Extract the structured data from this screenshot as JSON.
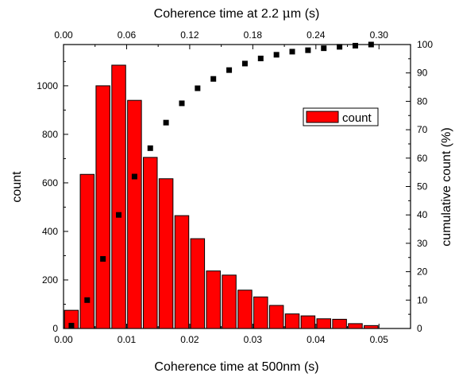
{
  "chart_data": {
    "type": "bar",
    "xlabel": "Coherence time at 500nm (s)",
    "x2label_prefix": "Coherence time at 2.2 ",
    "x2label_mu": "μ",
    "x2label_suffix": "m (s)",
    "ylabel": "count",
    "y2label": "cumulative count (%)",
    "xlim": [
      0,
      0.055
    ],
    "ylim": [
      0,
      1170
    ],
    "y2lim": [
      0,
      100
    ],
    "x2lim": [
      0,
      0.33
    ],
    "xticks": [
      "0.00",
      "0.01",
      "0.02",
      "0.03",
      "0.04",
      "0.05"
    ],
    "xtick_values": [
      0,
      0.01,
      0.02,
      0.03,
      0.04,
      0.05
    ],
    "x2ticks": [
      "0.00",
      "0.06",
      "0.12",
      "0.18",
      "0.24",
      "0.30"
    ],
    "x2tick_values": [
      0,
      0.06,
      0.12,
      0.18,
      0.24,
      0.3
    ],
    "yticks": [
      "0",
      "200",
      "400",
      "600",
      "800",
      "1000"
    ],
    "ytick_values": [
      0,
      200,
      400,
      600,
      800,
      1000
    ],
    "y2ticks": [
      "0",
      "10",
      "20",
      "30",
      "40",
      "50",
      "60",
      "70",
      "80",
      "90",
      "100"
    ],
    "y2tick_values": [
      0,
      10,
      20,
      30,
      40,
      50,
      60,
      70,
      80,
      90,
      100
    ],
    "legend_position": "top-right",
    "bar_color": "#ff0000",
    "series": [
      {
        "name": "count",
        "type": "bar",
        "x": [
          0.00125,
          0.00375,
          0.00625,
          0.00875,
          0.01125,
          0.01375,
          0.01625,
          0.01875,
          0.02125,
          0.02375,
          0.02625,
          0.02875,
          0.03125,
          0.03375,
          0.03625,
          0.03875,
          0.04125,
          0.04375,
          0.04625,
          0.04875
        ],
        "values": [
          75,
          635,
          1000,
          1085,
          940,
          705,
          617,
          465,
          370,
          237,
          220,
          158,
          130,
          95,
          60,
          52,
          40,
          38,
          20,
          12
        ]
      },
      {
        "type": "scatter",
        "axis": "right",
        "x": [
          0.00125,
          0.00375,
          0.00625,
          0.00875,
          0.01125,
          0.01375,
          0.01625,
          0.01875,
          0.02125,
          0.02375,
          0.02625,
          0.02875,
          0.03125,
          0.03375,
          0.03625,
          0.03875,
          0.04125,
          0.04375,
          0.04625,
          0.04875
        ],
        "values": [
          1,
          10,
          24.5,
          40,
          53.5,
          63.5,
          72.5,
          79.3,
          84.6,
          87.9,
          91,
          93.3,
          95.1,
          96.4,
          97.5,
          98,
          98.7,
          99.2,
          99.6,
          100
        ]
      }
    ]
  }
}
